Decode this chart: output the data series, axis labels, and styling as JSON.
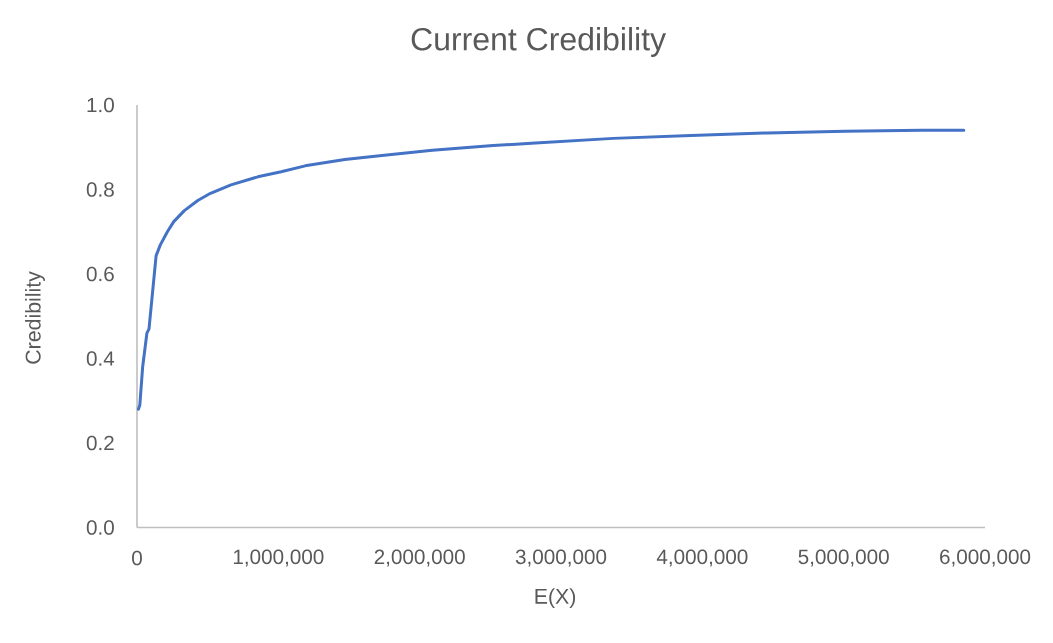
{
  "chart_data": {
    "type": "line",
    "title": "Current Credibility",
    "xlabel": "E(X)",
    "ylabel": "Credibility",
    "x": [
      10000,
      20000,
      40000,
      70000,
      85000,
      135000,
      165000,
      215000,
      260000,
      335000,
      430000,
      520000,
      665000,
      855000,
      1020000,
      1190000,
      1470000,
      1750000,
      2090000,
      2520000,
      2820000,
      3370000,
      3920000,
      4460000,
      5010000,
      5550000,
      5850000
    ],
    "values": [
      0.28,
      0.29,
      0.38,
      0.46,
      0.47,
      0.643,
      0.669,
      0.7,
      0.724,
      0.75,
      0.774,
      0.791,
      0.811,
      0.83,
      0.842,
      0.856,
      0.871,
      0.881,
      0.893,
      0.904,
      0.91,
      0.921,
      0.928,
      0.934,
      0.938,
      0.94,
      0.94
    ],
    "color": "#4472c4",
    "line_style": "solid",
    "marker": "none",
    "xlim": [
      0,
      6000000
    ],
    "xticks": [
      0,
      {
        "value": 1000000,
        "label": "1,000,000"
      },
      {
        "value": 2000000,
        "label": "2,000,000"
      },
      {
        "value": 3000000,
        "label": "3,000,000"
      },
      {
        "value": 4000000,
        "label": "4,000,000"
      },
      {
        "value": 5000000,
        "label": "5,000,000"
      },
      {
        "value": 6000000,
        "label": "6,000,000"
      }
    ],
    "ylim": [
      0,
      1
    ],
    "yticks": [
      {
        "value": 0,
        "label": "0.0"
      },
      0.2,
      0.4,
      0.6,
      0.8,
      {
        "value": 1,
        "label": "1.0"
      }
    ]
  }
}
